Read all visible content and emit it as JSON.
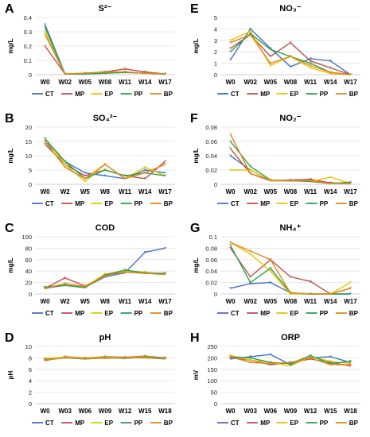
{
  "colors": {
    "CT": "#4472C4",
    "MP": "#C0504D",
    "EP": "#E8C500",
    "PP": "#2EA34A",
    "BP": "#E0881C"
  },
  "legend_labels": [
    "CT",
    "MP",
    "EP",
    "PP",
    "BP"
  ],
  "chart_data": [
    {
      "type": "line",
      "panel_letter": "A",
      "title": "S²⁻",
      "ylabel": "mg/L",
      "categories": [
        "W0",
        "W02",
        "W05",
        "W08",
        "W11",
        "W14",
        "W17"
      ],
      "ylim": [
        0,
        0.4
      ],
      "yticks": [
        "0",
        "0.1",
        "0.2",
        "0.3",
        "0.4"
      ],
      "series": [
        {
          "name": "CT",
          "values": [
            0.35,
            0.005,
            0.005,
            0.01,
            0.02,
            0.01,
            0.005
          ]
        },
        {
          "name": "MP",
          "values": [
            0.2,
            0.005,
            0.01,
            0.02,
            0.04,
            0.02,
            0.005
          ]
        },
        {
          "name": "EP",
          "values": [
            0.3,
            0.005,
            0.01,
            0.01,
            0.02,
            0.01,
            0.005
          ]
        },
        {
          "name": "PP",
          "values": [
            0.33,
            0.005,
            0.005,
            0.01,
            0.015,
            0.01,
            0.005
          ]
        },
        {
          "name": "BP",
          "values": [
            0.28,
            0.005,
            0.01,
            0.02,
            0.02,
            0.01,
            0.005
          ]
        }
      ]
    },
    {
      "type": "line",
      "panel_letter": "B",
      "title": "SO₄²⁻",
      "ylabel": "mg/L",
      "categories": [
        "W0",
        "W2",
        "W5",
        "W8",
        "W11",
        "W14",
        "W17"
      ],
      "ylim": [
        0,
        20
      ],
      "yticks": [
        "0",
        "5",
        "10",
        "15",
        "20"
      ],
      "series": [
        {
          "name": "CT",
          "values": [
            15,
            8,
            4,
            3,
            2,
            5,
            4
          ]
        },
        {
          "name": "MP",
          "values": [
            14,
            7,
            3,
            5,
            3,
            2,
            8
          ]
        },
        {
          "name": "EP",
          "values": [
            16,
            7,
            1,
            7,
            2,
            6,
            3
          ]
        },
        {
          "name": "PP",
          "values": [
            16,
            8,
            2,
            5,
            3,
            4,
            3
          ]
        },
        {
          "name": "BP",
          "values": [
            15,
            6,
            2,
            7,
            2,
            4,
            7
          ]
        }
      ]
    },
    {
      "type": "line",
      "panel_letter": "C",
      "title": "COD",
      "ylabel": "mg/L",
      "categories": [
        "W0",
        "W2",
        "W5",
        "W8",
        "W11",
        "W14",
        "W17"
      ],
      "ylim": [
        0,
        100
      ],
      "yticks": [
        "0",
        "20",
        "40",
        "60",
        "80",
        "100"
      ],
      "series": [
        {
          "name": "CT",
          "values": [
            10,
            15,
            12,
            30,
            37,
            73,
            80
          ]
        },
        {
          "name": "MP",
          "values": [
            10,
            28,
            14,
            32,
            40,
            36,
            36
          ]
        },
        {
          "name": "EP",
          "values": [
            11,
            18,
            13,
            35,
            40,
            38,
            34
          ]
        },
        {
          "name": "PP",
          "values": [
            12,
            15,
            11,
            33,
            42,
            37,
            36
          ]
        },
        {
          "name": "BP",
          "values": [
            9,
            18,
            13,
            32,
            38,
            36,
            34
          ]
        }
      ]
    },
    {
      "type": "line",
      "panel_letter": "D",
      "title": "pH",
      "ylabel": "pH",
      "categories": [
        "W0",
        "W03",
        "W06",
        "W09",
        "W12",
        "W15",
        "W18"
      ],
      "ylim": [
        0,
        10
      ],
      "yticks": [
        "0",
        "2",
        "4",
        "6",
        "8",
        "10"
      ],
      "series": [
        {
          "name": "CT",
          "values": [
            7.8,
            8,
            7.9,
            8,
            8,
            8.1,
            8
          ]
        },
        {
          "name": "MP",
          "values": [
            7.5,
            8.2,
            8,
            8.2,
            8.1,
            8.3,
            8
          ]
        },
        {
          "name": "EP",
          "values": [
            7.9,
            8.1,
            8,
            8.1,
            8,
            8.2,
            7.9
          ]
        },
        {
          "name": "PP",
          "values": [
            7.7,
            8,
            7.8,
            8,
            7.9,
            8.1,
            7.9
          ]
        },
        {
          "name": "BP",
          "values": [
            7.6,
            8,
            7.9,
            7.9,
            8,
            8,
            7.8
          ]
        }
      ]
    },
    {
      "type": "line",
      "panel_letter": "E",
      "title": "NO₃⁻",
      "ylabel": "mg/L",
      "categories": [
        "W0",
        "W02",
        "W05",
        "W08",
        "W11",
        "W14",
        "W17"
      ],
      "ylim": [
        0,
        5
      ],
      "yticks": [
        "0",
        "1",
        "2",
        "3",
        "4",
        "5"
      ],
      "series": [
        {
          "name": "CT",
          "values": [
            1.3,
            4,
            2.3,
            0.7,
            1.4,
            1.2,
            0
          ]
        },
        {
          "name": "MP",
          "values": [
            2.3,
            3.5,
            1.6,
            2.8,
            1.2,
            0.6,
            0
          ]
        },
        {
          "name": "EP",
          "values": [
            3,
            3.8,
            0.8,
            1.6,
            0.6,
            0.1,
            0
          ]
        },
        {
          "name": "PP",
          "values": [
            2,
            3.6,
            2.2,
            1.6,
            1,
            0.2,
            0
          ]
        },
        {
          "name": "BP",
          "values": [
            2.8,
            3.5,
            1,
            1.6,
            0.8,
            0.2,
            0
          ]
        }
      ]
    },
    {
      "type": "line",
      "panel_letter": "F",
      "title": "NO₂⁻",
      "ylabel": "mg/L",
      "categories": [
        "W0",
        "W02",
        "W05",
        "W08",
        "W11",
        "W14",
        "W17"
      ],
      "ylim": [
        0,
        0.08
      ],
      "yticks": [
        "0",
        "0.02",
        "0.04",
        "0.06",
        "0.08"
      ],
      "series": [
        {
          "name": "CT",
          "values": [
            0.04,
            0.02,
            0.005,
            0.005,
            0.005,
            0.002,
            0.001
          ]
        },
        {
          "name": "MP",
          "values": [
            0.05,
            0.015,
            0.005,
            0.006,
            0.007,
            0.002,
            0.001
          ]
        },
        {
          "name": "EP",
          "values": [
            0.02,
            0.02,
            0.005,
            0.005,
            0.004,
            0.01,
            0.001
          ]
        },
        {
          "name": "PP",
          "values": [
            0.06,
            0.025,
            0.006,
            0.005,
            0.004,
            0.001,
            0.003
          ]
        },
        {
          "name": "BP",
          "values": [
            0.07,
            0.015,
            0.006,
            0.005,
            0.005,
            0.001,
            0.001
          ]
        }
      ]
    },
    {
      "type": "line",
      "panel_letter": "G",
      "title": "NH₄⁺",
      "ylabel": "mg/L",
      "categories": [
        "W0",
        "W02",
        "W05",
        "W08",
        "W11",
        "W14",
        "W17"
      ],
      "ylim": [
        0,
        0.1
      ],
      "yticks": [
        "0",
        "0.02",
        "0.04",
        "0.06",
        "0.08",
        "0.1"
      ],
      "series": [
        {
          "name": "CT",
          "values": [
            0.01,
            0.018,
            0.02,
            0.002,
            0,
            0,
            0
          ]
        },
        {
          "name": "MP",
          "values": [
            0.08,
            0.03,
            0.06,
            0.03,
            0.022,
            0,
            0.01
          ]
        },
        {
          "name": "EP",
          "values": [
            0.09,
            0.07,
            0.04,
            0,
            0,
            0,
            0.02
          ]
        },
        {
          "name": "PP",
          "values": [
            0.085,
            0.02,
            0.045,
            0.002,
            0,
            0,
            0
          ]
        },
        {
          "name": "BP",
          "values": [
            0.09,
            0.075,
            0.06,
            0.002,
            0,
            0,
            0.01
          ]
        }
      ]
    },
    {
      "type": "line",
      "panel_letter": "H",
      "title": "ORP",
      "ylabel": "mV",
      "categories": [
        "W0",
        "W03",
        "W06",
        "W09",
        "W12",
        "W15",
        "W18"
      ],
      "ylim": [
        0,
        250
      ],
      "yticks": [
        "0",
        "50",
        "100",
        "150",
        "200",
        "250"
      ],
      "series": [
        {
          "name": "CT",
          "values": [
            195,
            205,
            215,
            170,
            200,
            205,
            180
          ]
        },
        {
          "name": "MP",
          "values": [
            200,
            190,
            170,
            180,
            195,
            180,
            165
          ]
        },
        {
          "name": "EP",
          "values": [
            210,
            190,
            180,
            165,
            205,
            185,
            175
          ]
        },
        {
          "name": "PP",
          "values": [
            205,
            200,
            180,
            175,
            210,
            175,
            185
          ]
        },
        {
          "name": "BP",
          "values": [
            205,
            180,
            175,
            180,
            200,
            170,
            170
          ]
        }
      ]
    }
  ]
}
